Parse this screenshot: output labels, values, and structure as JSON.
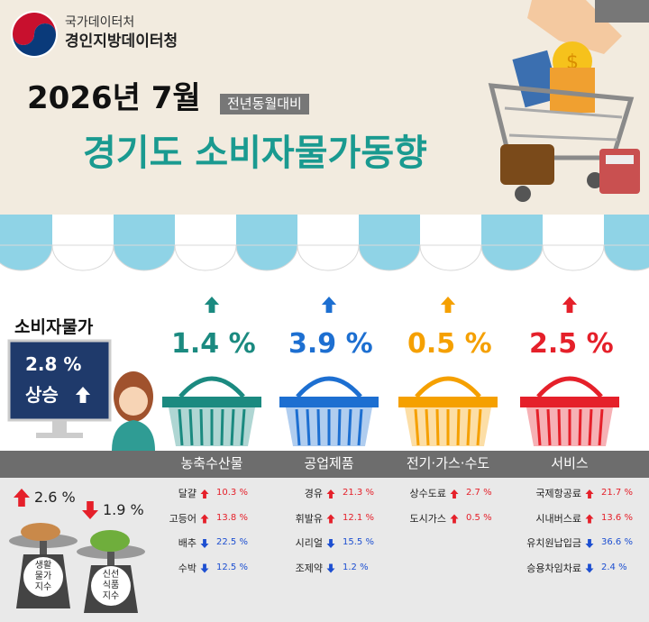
{
  "header": {
    "org_lines": [
      "국가데이터처",
      "경인지방데이터청"
    ],
    "period": "2026년 7월",
    "badge": "전년동월대비",
    "title": "경기도 소비자물가동향"
  },
  "overall": {
    "label": "소비자물가",
    "change": "2.8 %",
    "status": "상승",
    "direction": "up"
  },
  "categories": [
    {
      "name": "농축수산물",
      "change": "1.4 %",
      "direction": "up",
      "color": "#1b8a80",
      "items": [
        {
          "name": "달걀",
          "change": "10.3 %",
          "direction": "up"
        },
        {
          "name": "고등어",
          "change": "13.8 %",
          "direction": "up"
        },
        {
          "name": "배추",
          "change": "22.5 %",
          "direction": "down"
        },
        {
          "name": "수박",
          "change": "12.5 %",
          "direction": "down"
        }
      ]
    },
    {
      "name": "공업제품",
      "change": "3.9 %",
      "direction": "up",
      "color": "#1d6fd1",
      "items": [
        {
          "name": "경유",
          "change": "21.3 %",
          "direction": "up"
        },
        {
          "name": "휘발유",
          "change": "12.1 %",
          "direction": "up"
        },
        {
          "name": "시리얼",
          "change": "15.5 %",
          "direction": "down"
        },
        {
          "name": "조제약",
          "change": "1.2 %",
          "direction": "down"
        }
      ]
    },
    {
      "name": "전기·가스·수도",
      "change": "0.5 %",
      "direction": "up",
      "color": "#f5a000",
      "items": [
        {
          "name": "상수도료",
          "change": "2.7 %",
          "direction": "up"
        },
        {
          "name": "도시가스",
          "change": "0.5 %",
          "direction": "up"
        }
      ]
    },
    {
      "name": "서비스",
      "change": "2.5 %",
      "direction": "up",
      "color": "#e5202a",
      "items": [
        {
          "name": "국제항공료",
          "change": "21.7 %",
          "direction": "up"
        },
        {
          "name": "시내버스료",
          "change": "13.6 %",
          "direction": "up"
        },
        {
          "name": "유치원납입금",
          "change": "36.6 %",
          "direction": "down"
        },
        {
          "name": "승용차임차료",
          "change": "2.4 %",
          "direction": "down"
        }
      ]
    }
  ],
  "indices": [
    {
      "label_lines": [
        "생활",
        "물가",
        "지수"
      ],
      "change": "2.6 %",
      "direction": "up"
    },
    {
      "label_lines": [
        "신선",
        "식품",
        "지수"
      ],
      "change": "1.9 %",
      "direction": "down"
    }
  ]
}
